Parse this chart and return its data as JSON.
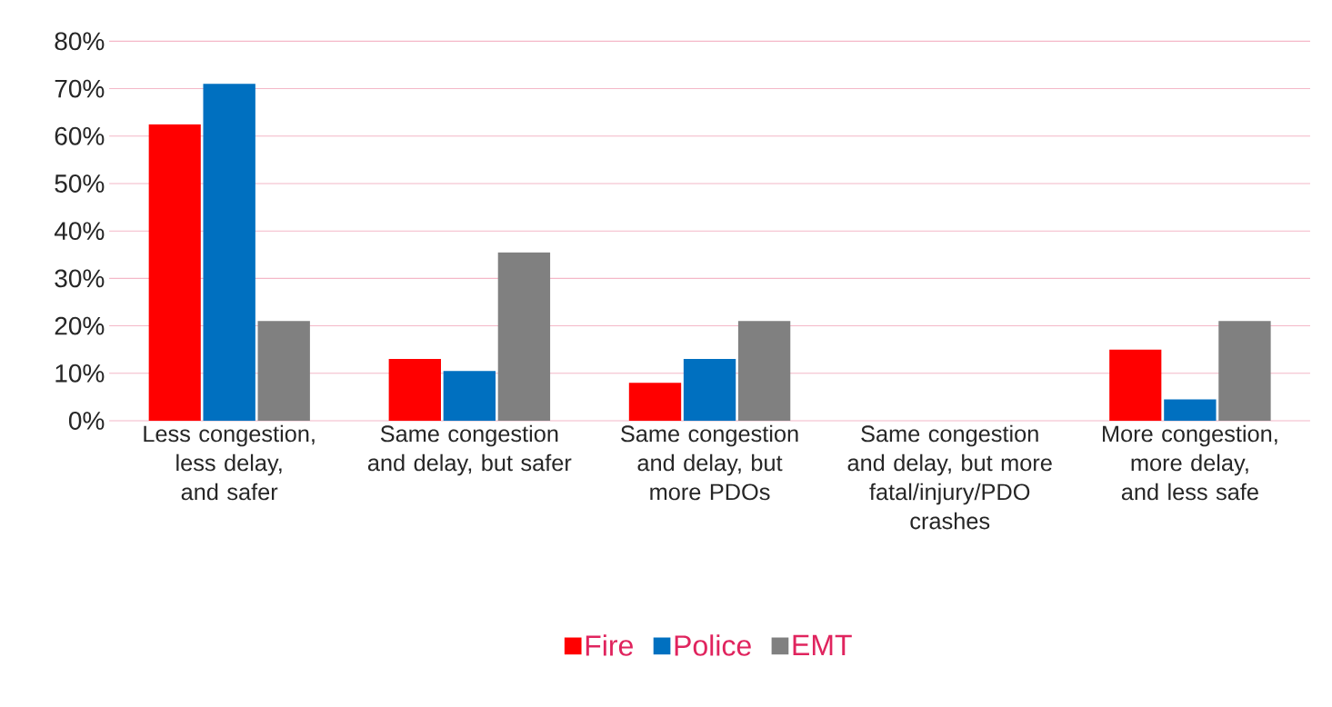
{
  "chart_data": {
    "type": "bar",
    "categories": [
      "Less congestion, less delay, and safer",
      "Same congestion and delay, but safer",
      "Same congestion and delay, but more PDOs",
      "Same congestion and delay, but more fatal/injury/PDO crashes",
      "More congestion, more delay, and less safe"
    ],
    "series": [
      {
        "name": "Fire",
        "color": "#ff0000",
        "values": [
          62.5,
          13,
          8,
          0,
          15
        ]
      },
      {
        "name": "Police",
        "color": "#0070c0",
        "values": [
          71,
          10.5,
          13,
          0,
          4.5
        ]
      },
      {
        "name": "EMT",
        "color": "#808080",
        "values": [
          21,
          35.5,
          21,
          0,
          21
        ]
      }
    ],
    "ylim": [
      0,
      80
    ],
    "yticks": [
      {
        "value": 0,
        "label": "0%"
      },
      {
        "value": 10,
        "label": "10%"
      },
      {
        "value": 20,
        "label": "20%"
      },
      {
        "value": 30,
        "label": "30%"
      },
      {
        "value": 40,
        "label": "40%"
      },
      {
        "value": 50,
        "label": "50%"
      },
      {
        "value": 60,
        "label": "60%"
      },
      {
        "value": 70,
        "label": "70%"
      },
      {
        "value": 80,
        "label": "80%"
      }
    ],
    "grid": "y",
    "legend": "bottom"
  }
}
